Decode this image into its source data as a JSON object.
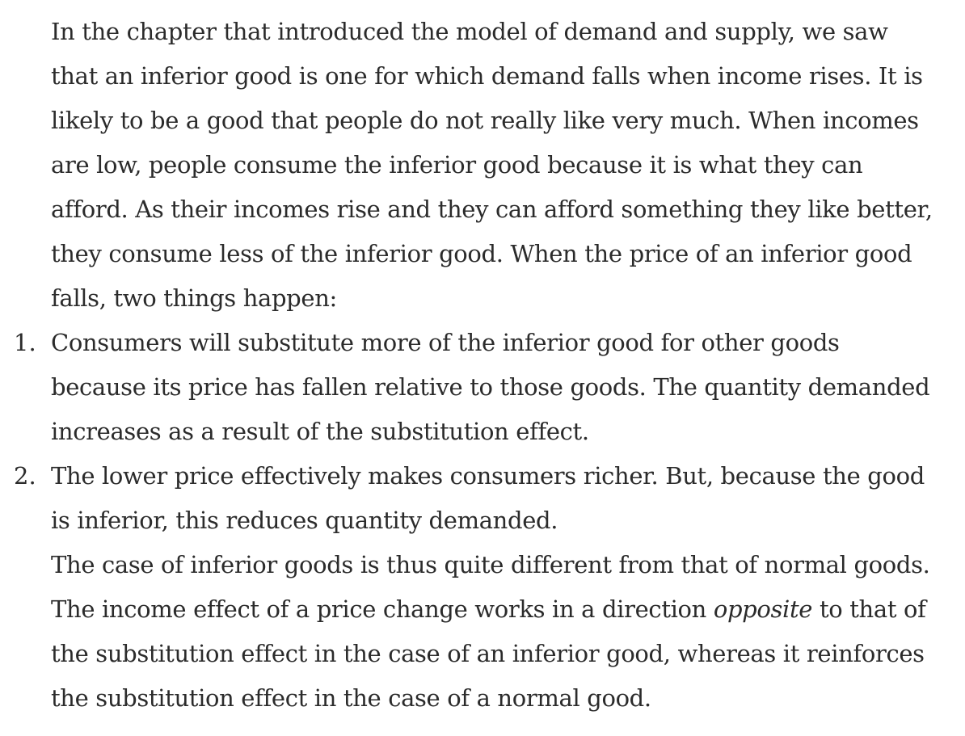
{
  "document": {
    "intro_paragraph": "In the chapter that introduced the model of demand and supply, we saw that an inferior good is one for which demand falls when income rises. It is likely to be a good that people do not really like very much. When incomes are low, people consume the inferior good because it is what they can afford. As their incomes rise and they can afford something they like better, they consume less of the inferior good. When the price of an inferior good falls, two things happen:",
    "list": [
      {
        "number": "1.",
        "text": "Consumers will substitute more of the inferior good for other goods because its price has fallen relative to those goods. The quantity demanded increases as a result of the substitution effect."
      },
      {
        "number": "2.",
        "text": "The lower price effectively makes consumers richer. But, because the good is inferior, this reduces quantity demanded."
      }
    ],
    "closing_paragraph": {
      "before_emphasis": "The case of inferior goods is thus quite different from that of normal goods. The income effect of a price change works in a direction ",
      "emphasis": "opposite",
      "after_emphasis": " to that of the substitution effect in the case of an inferior good, whereas it reinforces the substitution effect in the case of a normal good."
    }
  }
}
